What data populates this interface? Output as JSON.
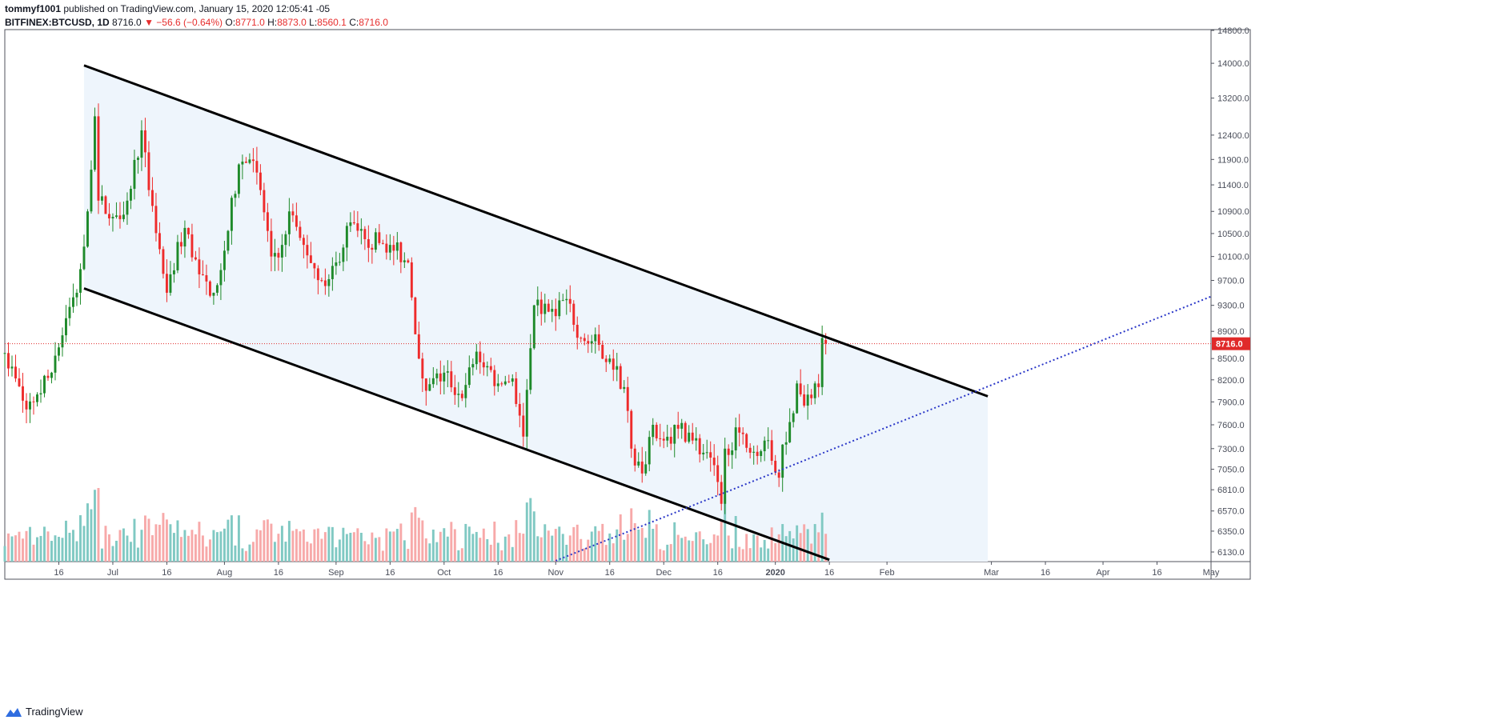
{
  "header": {
    "author": "tommyf1001",
    "published": " published on TradingView.com, January 15, 2020 12:05:41 -05",
    "symbol": "BITFINEX:BTCUSD, 1D",
    "last": "8716.0",
    "change": "−56.6 (−0.64%)",
    "open_label": "O:",
    "open": "8771.0",
    "high_label": "H:",
    "high": "8873.0",
    "low_label": "L:",
    "low": "8560.1",
    "close_label": "C:",
    "close": "8716.0",
    "arrow": "▼"
  },
  "footer": {
    "brand": "TradingView"
  },
  "colors": {
    "up": "#1e8a2a",
    "down": "#ee2b2b",
    "vol_up": "#80c9c3",
    "vol_down": "#f7a9a9",
    "channel_fill": "#eef5fc",
    "price_line": "#e02a2a",
    "trend_dotted": "#2a37c8",
    "channel_line": "#000000"
  },
  "chart_data": {
    "type": "candlestick",
    "symbol": "BITFINEX:BTCUSD",
    "interval": "1D",
    "y_scale": "log",
    "y_ticks": [
      6130.0,
      6350.0,
      6570.0,
      6810.0,
      7050.0,
      7300.0,
      7600.0,
      7900.0,
      8200.0,
      8500.0,
      8900.0,
      9300.0,
      9700.0,
      10100.0,
      10500.0,
      10900.0,
      11400.0,
      11900.0,
      12400.0,
      13200.0,
      14000.0,
      14800.0
    ],
    "x_ticks": [
      {
        "label": "16",
        "date": "2019-06-16"
      },
      {
        "label": "Jul",
        "date": "2019-07-01"
      },
      {
        "label": "16",
        "date": "2019-07-16"
      },
      {
        "label": "Aug",
        "date": "2019-08-01"
      },
      {
        "label": "16",
        "date": "2019-08-16"
      },
      {
        "label": "Sep",
        "date": "2019-09-01"
      },
      {
        "label": "16",
        "date": "2019-09-16"
      },
      {
        "label": "Oct",
        "date": "2019-10-01"
      },
      {
        "label": "16",
        "date": "2019-10-16"
      },
      {
        "label": "Nov",
        "date": "2019-11-01"
      },
      {
        "label": "16",
        "date": "2019-11-16"
      },
      {
        "label": "Dec",
        "date": "2019-12-01"
      },
      {
        "label": "16",
        "date": "2019-12-16"
      },
      {
        "label": "2020",
        "date": "2020-01-01"
      },
      {
        "label": "16",
        "date": "2020-01-16"
      },
      {
        "label": "Feb",
        "date": "2020-02-01"
      },
      {
        "label": "Mar",
        "date": "2020-03-01"
      },
      {
        "label": "16",
        "date": "2020-03-16"
      },
      {
        "label": "Apr",
        "date": "2020-04-01"
      },
      {
        "label": "16",
        "date": "2020-04-16"
      },
      {
        "label": "May",
        "date": "2020-05-01"
      }
    ],
    "x_range": [
      "2019-06-01",
      "2020-05-01"
    ],
    "last_price_label": "8716.0",
    "last_price": 8716.0,
    "daily_close_anchors": [
      {
        "date": "2019-06-01",
        "close": 8580
      },
      {
        "date": "2019-06-07",
        "close": 7800
      },
      {
        "date": "2019-06-10",
        "close": 8000
      },
      {
        "date": "2019-06-14",
        "close": 8300
      },
      {
        "date": "2019-06-18",
        "close": 9100
      },
      {
        "date": "2019-06-21",
        "close": 9500
      },
      {
        "date": "2019-06-24",
        "close": 10900
      },
      {
        "date": "2019-06-26",
        "close": 12800
      },
      {
        "date": "2019-06-27",
        "close": 11100
      },
      {
        "date": "2019-07-01",
        "close": 10800
      },
      {
        "date": "2019-07-05",
        "close": 11100
      },
      {
        "date": "2019-07-09",
        "close": 12500
      },
      {
        "date": "2019-07-11",
        "close": 11300
      },
      {
        "date": "2019-07-16",
        "close": 9500
      },
      {
        "date": "2019-07-17",
        "close": 9800
      },
      {
        "date": "2019-07-21",
        "close": 10600
      },
      {
        "date": "2019-07-25",
        "close": 9800
      },
      {
        "date": "2019-07-29",
        "close": 9500
      },
      {
        "date": "2019-08-01",
        "close": 10200
      },
      {
        "date": "2019-08-05",
        "close": 11800
      },
      {
        "date": "2019-08-08",
        "close": 11900
      },
      {
        "date": "2019-08-11",
        "close": 11300
      },
      {
        "date": "2019-08-14",
        "close": 10100
      },
      {
        "date": "2019-08-17",
        "close": 10300
      },
      {
        "date": "2019-08-19",
        "close": 10900
      },
      {
        "date": "2019-08-23",
        "close": 10300
      },
      {
        "date": "2019-08-28",
        "close": 9700
      },
      {
        "date": "2019-09-01",
        "close": 10000
      },
      {
        "date": "2019-09-05",
        "close": 10700
      },
      {
        "date": "2019-09-09",
        "close": 10400
      },
      {
        "date": "2019-09-16",
        "close": 10300
      },
      {
        "date": "2019-09-21",
        "close": 10000
      },
      {
        "date": "2019-09-24",
        "close": 8500
      },
      {
        "date": "2019-09-26",
        "close": 8050
      },
      {
        "date": "2019-10-01",
        "close": 8300
      },
      {
        "date": "2019-10-06",
        "close": 7950
      },
      {
        "date": "2019-10-10",
        "close": 8600
      },
      {
        "date": "2019-10-16",
        "close": 8150
      },
      {
        "date": "2019-10-20",
        "close": 8220
      },
      {
        "date": "2019-10-23",
        "close": 7450
      },
      {
        "date": "2019-10-25",
        "close": 8650
      },
      {
        "date": "2019-10-26",
        "close": 9300
      },
      {
        "date": "2019-10-30",
        "close": 9200
      },
      {
        "date": "2019-11-04",
        "close": 9400
      },
      {
        "date": "2019-11-08",
        "close": 8800
      },
      {
        "date": "2019-11-13",
        "close": 8700
      },
      {
        "date": "2019-11-16",
        "close": 8500
      },
      {
        "date": "2019-11-20",
        "close": 8100
      },
      {
        "date": "2019-11-22",
        "close": 7300
      },
      {
        "date": "2019-11-25",
        "close": 7000
      },
      {
        "date": "2019-11-28",
        "close": 7600
      },
      {
        "date": "2019-12-01",
        "close": 7400
      },
      {
        "date": "2019-12-05",
        "close": 7550
      },
      {
        "date": "2019-12-08",
        "close": 7500
      },
      {
        "date": "2019-12-12",
        "close": 7250
      },
      {
        "date": "2019-12-16",
        "close": 6900
      },
      {
        "date": "2019-12-17",
        "close": 6650
      },
      {
        "date": "2019-12-18",
        "close": 7300
      },
      {
        "date": "2019-12-22",
        "close": 7500
      },
      {
        "date": "2019-12-25",
        "close": 7250
      },
      {
        "date": "2019-12-29",
        "close": 7400
      },
      {
        "date": "2020-01-02",
        "close": 6950
      },
      {
        "date": "2020-01-03",
        "close": 7350
      },
      {
        "date": "2020-01-06",
        "close": 7750
      },
      {
        "date": "2020-01-07",
        "close": 8150
      },
      {
        "date": "2020-01-09",
        "close": 7850
      },
      {
        "date": "2020-01-12",
        "close": 8150
      },
      {
        "date": "2020-01-13",
        "close": 8100
      },
      {
        "date": "2020-01-14",
        "close": 8800
      },
      {
        "date": "2020-01-15",
        "close": 8716
      }
    ],
    "drawings": {
      "descending_channel": {
        "upper": [
          {
            "date": "2019-06-23",
            "price": 13950
          },
          {
            "date": "2020-02-29",
            "price": 7975
          }
        ],
        "lower": [
          {
            "date": "2019-06-23",
            "price": 9570
          },
          {
            "date": "2020-01-16",
            "price": 6050
          }
        ]
      },
      "dotted_trendline": [
        {
          "date": "2019-11-01",
          "price": 6040
        },
        {
          "date": "2020-05-01",
          "price": 9440
        }
      ]
    }
  }
}
